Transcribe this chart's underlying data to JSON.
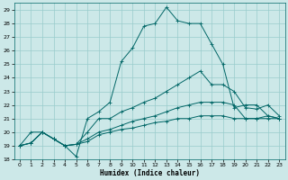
{
  "xlabel": "Humidex (Indice chaleur)",
  "xlim": [
    -0.5,
    23.5
  ],
  "ylim": [
    18,
    29.5
  ],
  "yticks": [
    18,
    19,
    20,
    21,
    22,
    23,
    24,
    25,
    26,
    27,
    28,
    29
  ],
  "xticks": [
    0,
    1,
    2,
    3,
    4,
    5,
    6,
    7,
    8,
    9,
    10,
    11,
    12,
    13,
    14,
    15,
    16,
    17,
    18,
    19,
    20,
    21,
    22,
    23
  ],
  "bg_color": "#cce8e8",
  "grid_color": "#99cccc",
  "line_color": "#006666",
  "lines": [
    {
      "x": [
        0,
        1,
        2,
        3,
        4,
        5,
        6,
        7,
        8,
        9,
        10,
        11,
        12,
        13,
        14,
        15,
        16,
        17,
        18,
        19,
        20,
        21,
        22,
        23
      ],
      "y": [
        19,
        20,
        20,
        19.5,
        19,
        18.2,
        21,
        21.5,
        22.2,
        25.2,
        26.2,
        27.8,
        28.0,
        29.2,
        28.2,
        28.0,
        28.0,
        26.5,
        25.0,
        21.8,
        22.0,
        22.0,
        21.2,
        21.0
      ]
    },
    {
      "x": [
        0,
        1,
        2,
        3,
        4,
        5,
        6,
        7,
        8,
        9,
        10,
        11,
        12,
        13,
        14,
        15,
        16,
        17,
        18,
        19,
        20,
        21,
        22,
        23
      ],
      "y": [
        19,
        19.2,
        20,
        19.5,
        19,
        19.1,
        20.0,
        21.0,
        21.0,
        21.5,
        21.8,
        22.2,
        22.5,
        23.0,
        23.5,
        24.0,
        24.5,
        23.5,
        23.5,
        23.0,
        21.8,
        21.7,
        22.0,
        21.2
      ]
    },
    {
      "x": [
        0,
        1,
        2,
        3,
        4,
        5,
        6,
        7,
        8,
        9,
        10,
        11,
        12,
        13,
        14,
        15,
        16,
        17,
        18,
        19,
        20,
        21,
        22,
        23
      ],
      "y": [
        19,
        19.2,
        20,
        19.5,
        19,
        19.1,
        19.5,
        20.0,
        20.2,
        20.5,
        20.8,
        21.0,
        21.2,
        21.5,
        21.8,
        22.0,
        22.2,
        22.2,
        22.2,
        22.0,
        21.0,
        21.0,
        21.2,
        21.0
      ]
    },
    {
      "x": [
        0,
        1,
        2,
        3,
        4,
        5,
        6,
        7,
        8,
        9,
        10,
        11,
        12,
        13,
        14,
        15,
        16,
        17,
        18,
        19,
        20,
        21,
        22,
        23
      ],
      "y": [
        19,
        19.2,
        20,
        19.5,
        19,
        19.1,
        19.3,
        19.8,
        20.0,
        20.2,
        20.3,
        20.5,
        20.7,
        20.8,
        21.0,
        21.0,
        21.2,
        21.2,
        21.2,
        21.0,
        21.0,
        21.0,
        21.0,
        21.0
      ]
    }
  ]
}
